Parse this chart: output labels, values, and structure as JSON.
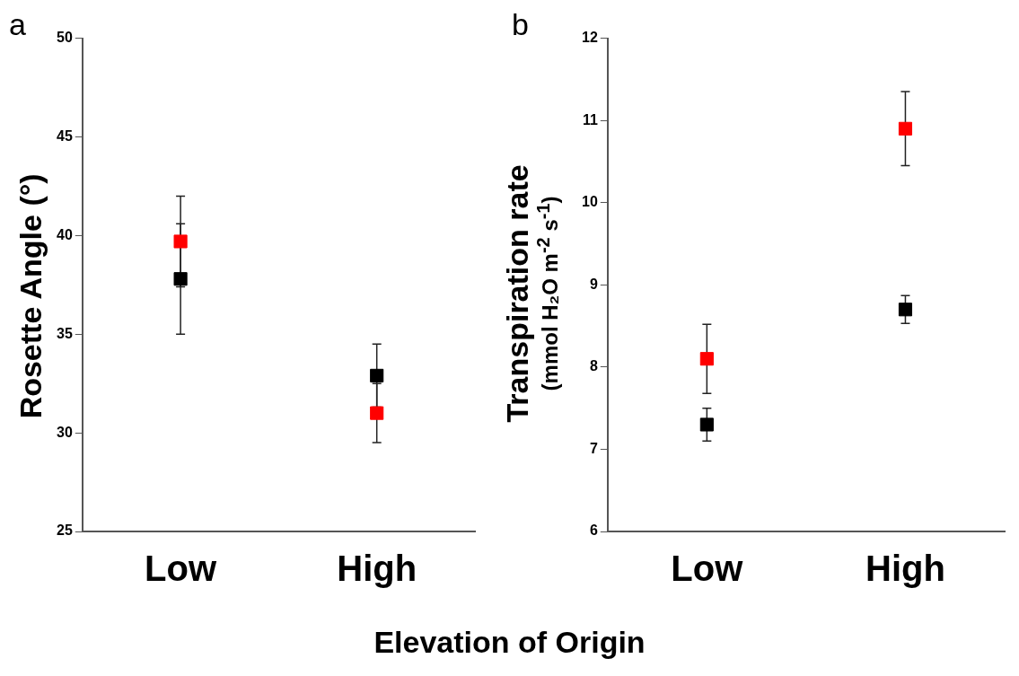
{
  "chart_data": [
    {
      "type": "scatter",
      "title": "a",
      "ylabel": "Rosette Angle (°)",
      "xlabel": "Elevation of Origin",
      "categories": [
        "Low",
        "High"
      ],
      "ylim": [
        25,
        50
      ],
      "yticks": [
        25,
        30,
        35,
        40,
        45,
        50
      ],
      "grid": false,
      "legend": false,
      "marker": "square",
      "series": [
        {
          "color": "#000000",
          "values": [
            37.8,
            32.9
          ],
          "errors": [
            2.8,
            1.6
          ]
        },
        {
          "color": "#ff0000",
          "values": [
            39.7,
            31.0
          ],
          "errors": [
            2.3,
            1.5
          ]
        }
      ]
    },
    {
      "type": "scatter",
      "title": "b",
      "ylabel": "Transpiration rate\n(mmol H₂O m$^{-2}$ s$^{-1}$)",
      "categories": [
        "Low",
        "High"
      ],
      "ylim": [
        6,
        12
      ],
      "yticks": [
        6,
        7,
        8,
        9,
        10,
        11,
        12
      ],
      "grid": false,
      "legend": false,
      "marker": "square",
      "series": [
        {
          "color": "#000000",
          "values": [
            7.3,
            8.7
          ],
          "errors": [
            0.2,
            0.17
          ]
        },
        {
          "color": "#ff0000",
          "values": [
            8.1,
            10.9
          ],
          "errors": [
            0.42,
            0.45
          ]
        }
      ]
    }
  ]
}
